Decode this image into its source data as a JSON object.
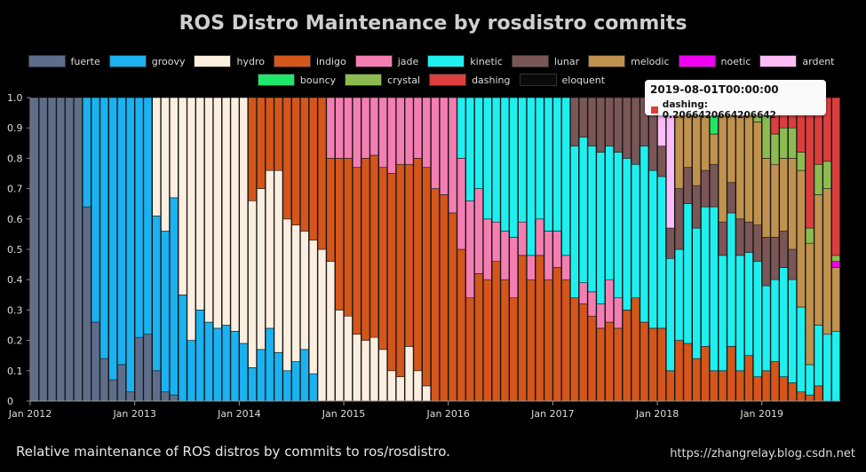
{
  "chart_data": {
    "type": "bar",
    "stacked": true,
    "title": "ROS Distro Maintenance by rosdistro commits",
    "xlabel": "",
    "ylabel": "",
    "ylim": [
      0,
      1
    ],
    "y_ticks": [
      "0",
      "0.1",
      "0.2",
      "0.3",
      "0.4",
      "0.5",
      "0.6",
      "0.7",
      "0.8",
      "0.9",
      "1.0"
    ],
    "x_ticks": [
      "Jan 2012",
      "Jan 2013",
      "Jan 2014",
      "Jan 2015",
      "Jan 2016",
      "Jan 2017",
      "Jan 2018",
      "Jan 2019"
    ],
    "x_start": "2012-01",
    "legend_position": "top",
    "series": [
      {
        "name": "fuerte",
        "color": "#5e6e8a"
      },
      {
        "name": "groovy",
        "color": "#1ab2f0"
      },
      {
        "name": "hydro",
        "color": "#fcefe0"
      },
      {
        "name": "indigo",
        "color": "#d4561a"
      },
      {
        "name": "jade",
        "color": "#f47eb2"
      },
      {
        "name": "kinetic",
        "color": "#1ef0f0"
      },
      {
        "name": "lunar",
        "color": "#7a5656"
      },
      {
        "name": "melodic",
        "color": "#c0924e"
      },
      {
        "name": "noetic",
        "color": "#f000f0"
      },
      {
        "name": "ardent",
        "color": "#fcbcf8"
      },
      {
        "name": "bouncy",
        "color": "#1ee86a"
      },
      {
        "name": "crystal",
        "color": "#8cbc50"
      },
      {
        "name": "dashing",
        "color": "#dc3e3e"
      },
      {
        "name": "eloquent",
        "color": "#0a0a0a"
      }
    ],
    "bars": [
      {
        "month": "2012-01",
        "values": {
          "fuerte": 1
        }
      },
      {
        "month": "2012-02",
        "values": {
          "fuerte": 1
        }
      },
      {
        "month": "2012-03",
        "values": {
          "fuerte": 1
        }
      },
      {
        "month": "2012-04",
        "values": {
          "fuerte": 1
        }
      },
      {
        "month": "2012-05",
        "values": {
          "fuerte": 1
        }
      },
      {
        "month": "2012-06",
        "values": {
          "fuerte": 1
        }
      },
      {
        "month": "2012-07",
        "values": {
          "fuerte": 0.64,
          "groovy": 0.36
        }
      },
      {
        "month": "2012-08",
        "values": {
          "fuerte": 0.26,
          "groovy": 0.74
        }
      },
      {
        "month": "2012-09",
        "values": {
          "fuerte": 0.14,
          "groovy": 0.86
        }
      },
      {
        "month": "2012-10",
        "values": {
          "fuerte": 0.07,
          "groovy": 0.93
        }
      },
      {
        "month": "2012-11",
        "values": {
          "fuerte": 0.12,
          "groovy": 0.88
        }
      },
      {
        "month": "2012-12",
        "values": {
          "fuerte": 0.03,
          "groovy": 0.97
        }
      },
      {
        "month": "2013-01",
        "values": {
          "fuerte": 0.21,
          "groovy": 0.79
        }
      },
      {
        "month": "2013-02",
        "values": {
          "fuerte": 0.22,
          "groovy": 0.78
        }
      },
      {
        "month": "2013-03",
        "values": {
          "fuerte": 0.1,
          "groovy": 0.51,
          "hydro": 0.39
        }
      },
      {
        "month": "2013-04",
        "values": {
          "fuerte": 0.03,
          "groovy": 0.53,
          "hydro": 0.44
        }
      },
      {
        "month": "2013-05",
        "values": {
          "fuerte": 0.02,
          "groovy": 0.65,
          "hydro": 0.33
        }
      },
      {
        "month": "2013-06",
        "values": {
          "groovy": 0.35,
          "hydro": 0.65
        }
      },
      {
        "month": "2013-07",
        "values": {
          "groovy": 0.2,
          "hydro": 0.8
        }
      },
      {
        "month": "2013-08",
        "values": {
          "groovy": 0.3,
          "hydro": 0.7
        }
      },
      {
        "month": "2013-09",
        "values": {
          "groovy": 0.26,
          "hydro": 0.74
        }
      },
      {
        "month": "2013-10",
        "values": {
          "groovy": 0.24,
          "hydro": 0.76
        }
      },
      {
        "month": "2013-11",
        "values": {
          "groovy": 0.25,
          "hydro": 0.75
        }
      },
      {
        "month": "2013-12",
        "values": {
          "groovy": 0.23,
          "hydro": 0.77
        }
      },
      {
        "month": "2014-01",
        "values": {
          "groovy": 0.19,
          "hydro": 0.81
        }
      },
      {
        "month": "2014-02",
        "values": {
          "groovy": 0.11,
          "hydro": 0.55,
          "indigo": 0.34
        }
      },
      {
        "month": "2014-03",
        "values": {
          "groovy": 0.17,
          "hydro": 0.53,
          "indigo": 0.3
        }
      },
      {
        "month": "2014-04",
        "values": {
          "groovy": 0.24,
          "hydro": 0.52,
          "indigo": 0.24
        }
      },
      {
        "month": "2014-05",
        "values": {
          "groovy": 0.16,
          "hydro": 0.6,
          "indigo": 0.24
        }
      },
      {
        "month": "2014-06",
        "values": {
          "groovy": 0.1,
          "hydro": 0.5,
          "indigo": 0.4
        }
      },
      {
        "month": "2014-07",
        "values": {
          "groovy": 0.13,
          "hydro": 0.45,
          "indigo": 0.42
        }
      },
      {
        "month": "2014-08",
        "values": {
          "groovy": 0.17,
          "hydro": 0.39,
          "indigo": 0.44
        }
      },
      {
        "month": "2014-09",
        "values": {
          "groovy": 0.09,
          "hydro": 0.44,
          "indigo": 0.47
        }
      },
      {
        "month": "2014-10",
        "values": {
          "hydro": 0.5,
          "indigo": 0.5
        }
      },
      {
        "month": "2014-11",
        "values": {
          "hydro": 0.46,
          "indigo": 0.34,
          "jade": 0.2
        }
      },
      {
        "month": "2014-12",
        "values": {
          "hydro": 0.3,
          "indigo": 0.5,
          "jade": 0.2
        }
      },
      {
        "month": "2015-01",
        "values": {
          "hydro": 0.28,
          "indigo": 0.52,
          "jade": 0.2
        }
      },
      {
        "month": "2015-02",
        "values": {
          "hydro": 0.22,
          "indigo": 0.55,
          "jade": 0.23
        }
      },
      {
        "month": "2015-03",
        "values": {
          "hydro": 0.2,
          "indigo": 0.6,
          "jade": 0.2
        }
      },
      {
        "month": "2015-04",
        "values": {
          "hydro": 0.21,
          "indigo": 0.6,
          "jade": 0.19
        }
      },
      {
        "month": "2015-05",
        "values": {
          "hydro": 0.17,
          "indigo": 0.6,
          "jade": 0.23
        }
      },
      {
        "month": "2015-06",
        "values": {
          "hydro": 0.1,
          "indigo": 0.65,
          "jade": 0.25
        }
      },
      {
        "month": "2015-07",
        "values": {
          "hydro": 0.08,
          "indigo": 0.7,
          "jade": 0.22
        }
      },
      {
        "month": "2015-08",
        "values": {
          "hydro": 0.18,
          "indigo": 0.6,
          "jade": 0.22
        }
      },
      {
        "month": "2015-09",
        "values": {
          "hydro": 0.1,
          "indigo": 0.7,
          "jade": 0.2
        }
      },
      {
        "month": "2015-10",
        "values": {
          "hydro": 0.05,
          "indigo": 0.72,
          "jade": 0.23
        }
      },
      {
        "month": "2015-11",
        "values": {
          "indigo": 0.7,
          "jade": 0.3
        }
      },
      {
        "month": "2015-12",
        "values": {
          "indigo": 0.68,
          "jade": 0.32
        }
      },
      {
        "month": "2016-01",
        "values": {
          "indigo": 0.62,
          "jade": 0.38
        }
      },
      {
        "month": "2016-02",
        "values": {
          "indigo": 0.5,
          "jade": 0.3,
          "kinetic": 0.2
        }
      },
      {
        "month": "2016-03",
        "values": {
          "indigo": 0.34,
          "jade": 0.32,
          "kinetic": 0.34
        }
      },
      {
        "month": "2016-04",
        "values": {
          "indigo": 0.42,
          "jade": 0.28,
          "kinetic": 0.3
        }
      },
      {
        "month": "2016-05",
        "values": {
          "indigo": 0.4,
          "jade": 0.2,
          "kinetic": 0.4
        }
      },
      {
        "month": "2016-06",
        "values": {
          "indigo": 0.46,
          "jade": 0.13,
          "kinetic": 0.41
        }
      },
      {
        "month": "2016-07",
        "values": {
          "indigo": 0.4,
          "jade": 0.16,
          "kinetic": 0.44
        }
      },
      {
        "month": "2016-08",
        "values": {
          "indigo": 0.34,
          "jade": 0.2,
          "kinetic": 0.46
        }
      },
      {
        "month": "2016-09",
        "values": {
          "indigo": 0.48,
          "jade": 0.11,
          "kinetic": 0.41
        }
      },
      {
        "month": "2016-10",
        "values": {
          "indigo": 0.4,
          "jade": 0.08,
          "kinetic": 0.52
        }
      },
      {
        "month": "2016-11",
        "values": {
          "indigo": 0.48,
          "jade": 0.12,
          "kinetic": 0.4
        }
      },
      {
        "month": "2016-12",
        "values": {
          "indigo": 0.4,
          "jade": 0.16,
          "kinetic": 0.44
        }
      },
      {
        "month": "2017-01",
        "values": {
          "indigo": 0.44,
          "jade": 0.12,
          "kinetic": 0.44
        }
      },
      {
        "month": "2017-02",
        "values": {
          "indigo": 0.4,
          "jade": 0.08,
          "kinetic": 0.52
        }
      },
      {
        "month": "2017-03",
        "values": {
          "indigo": 0.34,
          "kinetic": 0.5,
          "lunar": 0.16
        }
      },
      {
        "month": "2017-04",
        "values": {
          "indigo": 0.32,
          "jade": 0.07,
          "kinetic": 0.48,
          "lunar": 0.13
        }
      },
      {
        "month": "2017-05",
        "values": {
          "indigo": 0.28,
          "jade": 0.08,
          "kinetic": 0.48,
          "lunar": 0.16
        }
      },
      {
        "month": "2017-06",
        "values": {
          "indigo": 0.24,
          "jade": 0.08,
          "kinetic": 0.5,
          "lunar": 0.18
        }
      },
      {
        "month": "2017-07",
        "values": {
          "indigo": 0.26,
          "jade": 0.14,
          "kinetic": 0.44,
          "lunar": 0.16
        }
      },
      {
        "month": "2017-08",
        "values": {
          "indigo": 0.24,
          "jade": 0.1,
          "kinetic": 0.48,
          "lunar": 0.18
        }
      },
      {
        "month": "2017-09",
        "values": {
          "indigo": 0.3,
          "kinetic": 0.5,
          "lunar": 0.2
        }
      },
      {
        "month": "2017-10",
        "values": {
          "indigo": 0.34,
          "kinetic": 0.44,
          "lunar": 0.22
        }
      },
      {
        "month": "2017-11",
        "values": {
          "indigo": 0.26,
          "kinetic": 0.58,
          "lunar": 0.16
        }
      },
      {
        "month": "2017-12",
        "values": {
          "indigo": 0.24,
          "kinetic": 0.52,
          "lunar": 0.24
        }
      },
      {
        "month": "2018-01",
        "values": {
          "indigo": 0.24,
          "kinetic": 0.5,
          "lunar": 0.1,
          "ardent": 0.16
        }
      },
      {
        "month": "2018-02",
        "values": {
          "indigo": 0.1,
          "kinetic": 0.37,
          "lunar": 0.1,
          "ardent": 0.43
        }
      },
      {
        "month": "2018-03",
        "values": {
          "indigo": 0.2,
          "kinetic": 0.3,
          "lunar": 0.2,
          "melodic": 0.3
        }
      },
      {
        "month": "2018-04",
        "values": {
          "indigo": 0.19,
          "kinetic": 0.46,
          "lunar": 0.12,
          "melodic": 0.23
        }
      },
      {
        "month": "2018-05",
        "values": {
          "indigo": 0.14,
          "kinetic": 0.43,
          "lunar": 0.14,
          "melodic": 0.29
        }
      },
      {
        "month": "2018-06",
        "values": {
          "indigo": 0.18,
          "kinetic": 0.46,
          "lunar": 0.12,
          "melodic": 0.24
        }
      },
      {
        "month": "2018-07",
        "values": {
          "indigo": 0.1,
          "kinetic": 0.54,
          "lunar": 0.14,
          "melodic": 0.1,
          "bouncy": 0.12
        }
      },
      {
        "month": "2018-08",
        "values": {
          "indigo": 0.1,
          "kinetic": 0.38,
          "lunar": 0.11,
          "melodic": 0.41
        }
      },
      {
        "month": "2018-09",
        "values": {
          "indigo": 0.18,
          "kinetic": 0.44,
          "lunar": 0.1,
          "melodic": 0.28
        }
      },
      {
        "month": "2018-10",
        "values": {
          "indigo": 0.1,
          "kinetic": 0.38,
          "lunar": 0.12,
          "melodic": 0.4
        }
      },
      {
        "month": "2018-11",
        "values": {
          "indigo": 0.15,
          "kinetic": 0.34,
          "lunar": 0.1,
          "melodic": 0.36,
          "crystal": 0.05
        }
      },
      {
        "month": "2018-12",
        "values": {
          "indigo": 0.08,
          "kinetic": 0.38,
          "lunar": 0.12,
          "melodic": 0.34,
          "crystal": 0.08
        }
      },
      {
        "month": "2019-01",
        "values": {
          "indigo": 0.1,
          "kinetic": 0.28,
          "lunar": 0.16,
          "melodic": 0.26,
          "crystal": 0.2
        }
      },
      {
        "month": "2019-02",
        "values": {
          "indigo": 0.13,
          "kinetic": 0.27,
          "lunar": 0.14,
          "melodic": 0.24,
          "crystal": 0.1,
          "dashing": 0.12
        }
      },
      {
        "month": "2019-03",
        "values": {
          "indigo": 0.08,
          "kinetic": 0.36,
          "lunar": 0.12,
          "melodic": 0.24,
          "crystal": 0.1,
          "dashing": 0.1
        }
      },
      {
        "month": "2019-04",
        "values": {
          "indigo": 0.06,
          "kinetic": 0.34,
          "lunar": 0.1,
          "melodic": 0.3,
          "crystal": 0.1,
          "dashing": 0.1
        }
      },
      {
        "month": "2019-05",
        "values": {
          "indigo": 0.03,
          "kinetic": 0.28,
          "melodic": 0.45,
          "crystal": 0.06,
          "dashing": 0.18
        }
      },
      {
        "month": "2019-06",
        "values": {
          "indigo": 0.02,
          "kinetic": 0.1,
          "melodic": 0.4,
          "crystal": 0.05,
          "dashing": 0.43
        }
      },
      {
        "month": "2019-07",
        "values": {
          "indigo": 0.05,
          "kinetic": 0.2,
          "melodic": 0.43,
          "crystal": 0.1,
          "dashing": 0.22
        }
      },
      {
        "month": "2019-08",
        "values": {
          "kinetic": 0.22,
          "melodic": 0.48,
          "crystal": 0.09,
          "dashing": 0.21
        }
      },
      {
        "month": "2019-09",
        "values": {
          "kinetic": 0.23,
          "melodic": 0.21,
          "noetic": 0.02,
          "crystal": 0.02,
          "dashing": 0.52
        }
      }
    ]
  },
  "tooltip": {
    "title": "2019-08-01T00:00:00",
    "label": "dashing: 0.2066420664206642",
    "color": "#dc3e3e"
  },
  "caption": "Relative maintenance of ROS distros by commits to ros/rosdistro.",
  "watermark": "https://zhangrelay.blog.csdn.net"
}
